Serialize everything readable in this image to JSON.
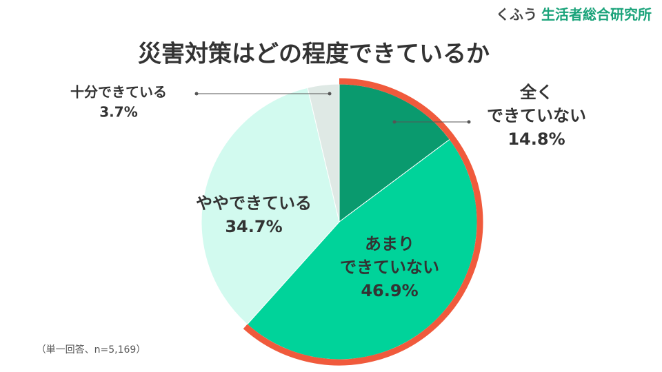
{
  "brand": {
    "name": "くふう",
    "org": "生活者総合研究所"
  },
  "chart_data": {
    "type": "pie",
    "title": "災害対策はどの程度できているか",
    "categories": [
      "全く\nできていない",
      "あまり\nできていない",
      "ややできている",
      "十分できている"
    ],
    "values": [
      14.8,
      46.9,
      34.7,
      3.7
    ],
    "value_labels": [
      "14.8%",
      "46.9%",
      "34.7%",
      "3.7%"
    ],
    "colors": [
      "#0a9a6e",
      "#00d39a",
      "#d2faef",
      "#dfe9e5"
    ],
    "note": "（単一回答、n=5,169）"
  }
}
